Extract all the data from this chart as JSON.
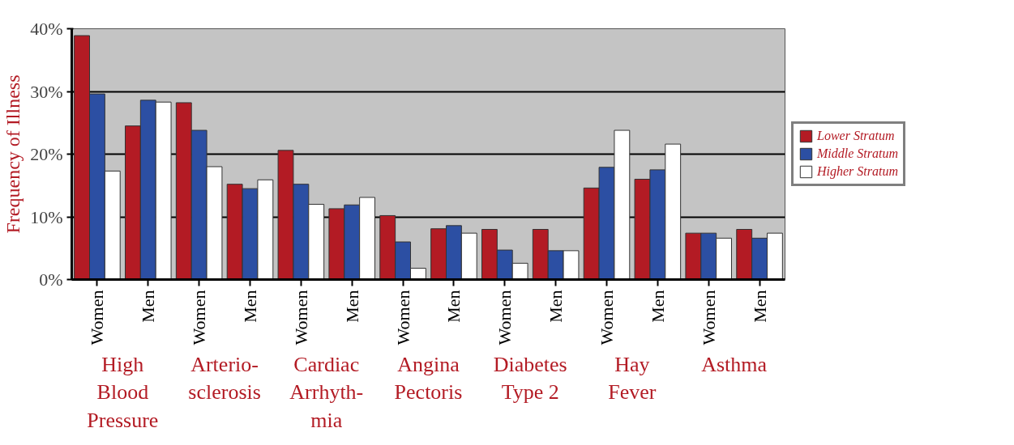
{
  "chart_data": {
    "type": "bar",
    "ylabel": "Frequency of Illness",
    "categories": [
      "Women",
      "Men",
      "Women",
      "Men",
      "Women",
      "Men",
      "Women",
      "Men",
      "Women",
      "Men",
      "Women",
      "Men",
      "Women",
      "Men"
    ],
    "annotations": [
      "High\nBlood\nPressure",
      "Arterio-\nsclerosis",
      "Cardiac\nArrhyth-\nmia",
      "Angina\nPectoris",
      "Diabetes\nType 2",
      "Hay\nFever",
      "Asthma"
    ],
    "series": [
      {
        "name": "Lower Stratum",
        "color": "#b31b24",
        "values": [
          38.9,
          24.5,
          28.2,
          15.2,
          20.6,
          11.3,
          10.2,
          8.1,
          8.0,
          8.0,
          14.6,
          16.0,
          7.4,
          8.0
        ]
      },
      {
        "name": "Middle Stratum",
        "color": "#2c4fa3",
        "values": [
          29.6,
          28.6,
          23.8,
          14.5,
          15.2,
          11.9,
          6.0,
          8.6,
          4.7,
          4.6,
          17.9,
          17.5,
          7.4,
          6.6
        ]
      },
      {
        "name": "Higher Stratum",
        "color": "#ffffff",
        "values": [
          17.3,
          28.3,
          18.0,
          15.9,
          12.0,
          13.1,
          1.8,
          7.4,
          2.6,
          4.6,
          23.8,
          21.6,
          6.6,
          7.4
        ]
      }
    ],
    "ylim": [
      0,
      40
    ],
    "yticks": [
      {
        "value": 0,
        "label": "0%"
      },
      {
        "value": 10,
        "label": "10%"
      },
      {
        "value": 20,
        "label": "20%"
      },
      {
        "value": 30,
        "label": "30%"
      },
      {
        "value": 40,
        "label": "40%"
      }
    ],
    "grid": "y",
    "legend": "right"
  }
}
